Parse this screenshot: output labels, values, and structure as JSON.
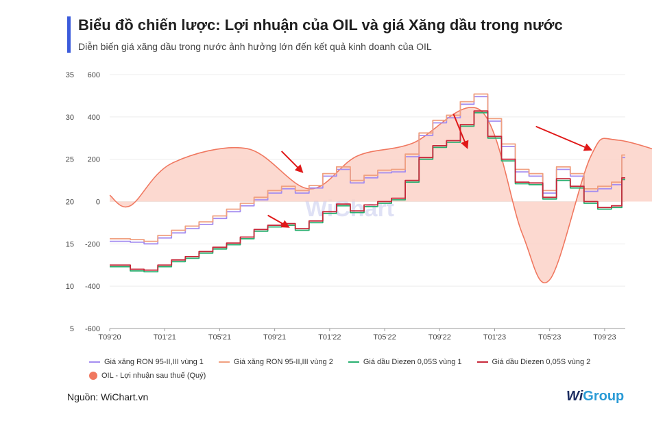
{
  "header": {
    "title": "Biểu đồ chiến lược: Lợi nhuận của OIL và giá Xăng dầu trong nước",
    "subtitle": "Diễn biến giá xăng dầu trong nước ảnh hưởng lớn đến kết quả kinh doanh của OIL"
  },
  "source": "Nguồn: WiChart.vn",
  "brand": {
    "w": "Wi",
    "g": "Group"
  },
  "watermark": "WiChart",
  "colors": {
    "ron95_v1": "#a48df0",
    "ron95_v2": "#f0a080",
    "diesel_v1": "#28b070",
    "diesel_v2": "#c8283a",
    "profit": "#f07860",
    "profit_fill": "#fcd2c8",
    "arrow": "#e01818",
    "accent": "#3b5bdb"
  },
  "chart_data": {
    "type": "line",
    "x_ticks": [
      "T09'20",
      "T01'21",
      "T05'21",
      "T09'21",
      "T01'22",
      "T05'22",
      "T09'22",
      "T01'23",
      "T05'23",
      "T09'23"
    ],
    "x_range_months": [
      0,
      37.5
    ],
    "left_axis": {
      "ticks": [
        35,
        30,
        25,
        20,
        15,
        10,
        5
      ],
      "range": [
        5,
        35
      ]
    },
    "right_axis": {
      "ticks": [
        600,
        400,
        200,
        0,
        -200,
        -400,
        -600
      ],
      "range": [
        -600,
        600
      ]
    },
    "series": [
      {
        "name": "Giá xăng RON 95-II,III vùng 1",
        "key": "ron95_v1",
        "axis": "left",
        "points": [
          [
            0,
            15.3
          ],
          [
            1,
            15.3
          ],
          [
            2,
            15.2
          ],
          [
            3,
            15.0
          ],
          [
            4,
            15.7
          ],
          [
            5,
            16.3
          ],
          [
            6,
            16.8
          ],
          [
            7,
            17.3
          ],
          [
            8,
            18.0
          ],
          [
            9,
            18.8
          ],
          [
            10,
            19.5
          ],
          [
            11,
            20.2
          ],
          [
            12,
            21.0
          ],
          [
            13,
            21.5
          ],
          [
            14,
            21.0
          ],
          [
            15,
            21.6
          ],
          [
            16,
            23.0
          ],
          [
            17,
            23.8
          ],
          [
            18,
            22.2
          ],
          [
            19,
            22.8
          ],
          [
            20,
            23.4
          ],
          [
            21,
            23.5
          ],
          [
            22,
            25.3
          ],
          [
            23,
            27.8
          ],
          [
            24,
            29.3
          ],
          [
            25,
            29.9
          ],
          [
            26,
            31.5
          ],
          [
            27,
            32.4
          ],
          [
            28,
            29.5
          ],
          [
            29,
            26.5
          ],
          [
            30,
            23.5
          ],
          [
            31,
            23.0
          ],
          [
            32,
            21.0
          ],
          [
            33,
            23.8
          ],
          [
            34,
            23.0
          ],
          [
            35,
            21.2
          ],
          [
            36,
            21.5
          ],
          [
            37,
            22.0
          ],
          [
            37.5,
            25.2
          ]
        ]
      },
      {
        "name": "Giá xăng RON 95-II,III vùng 2",
        "key": "ron95_v2",
        "axis": "left",
        "points": [
          [
            0,
            15.6
          ],
          [
            1,
            15.6
          ],
          [
            2,
            15.5
          ],
          [
            3,
            15.3
          ],
          [
            4,
            16.0
          ],
          [
            5,
            16.6
          ],
          [
            6,
            17.1
          ],
          [
            7,
            17.6
          ],
          [
            8,
            18.3
          ],
          [
            9,
            19.1
          ],
          [
            10,
            19.8
          ],
          [
            11,
            20.5
          ],
          [
            12,
            21.3
          ],
          [
            13,
            21.8
          ],
          [
            14,
            21.3
          ],
          [
            15,
            21.9
          ],
          [
            16,
            23.3
          ],
          [
            17,
            24.1
          ],
          [
            18,
            22.5
          ],
          [
            19,
            23.1
          ],
          [
            20,
            23.7
          ],
          [
            21,
            23.8
          ],
          [
            22,
            25.6
          ],
          [
            23,
            28.1
          ],
          [
            24,
            29.6
          ],
          [
            25,
            30.2
          ],
          [
            26,
            31.8
          ],
          [
            27,
            32.7
          ],
          [
            28,
            29.8
          ],
          [
            29,
            26.8
          ],
          [
            30,
            23.8
          ],
          [
            31,
            23.3
          ],
          [
            32,
            21.3
          ],
          [
            33,
            24.1
          ],
          [
            34,
            23.3
          ],
          [
            35,
            21.5
          ],
          [
            36,
            21.8
          ],
          [
            37,
            22.3
          ],
          [
            37.5,
            25.5
          ]
        ]
      },
      {
        "name": "Giá dầu Diezen 0,05S vùng 1",
        "key": "diesel_v1",
        "axis": "left",
        "points": [
          [
            0,
            12.3
          ],
          [
            1,
            12.3
          ],
          [
            2,
            11.8
          ],
          [
            3,
            11.7
          ],
          [
            4,
            12.3
          ],
          [
            5,
            12.9
          ],
          [
            6,
            13.3
          ],
          [
            7,
            13.9
          ],
          [
            8,
            14.4
          ],
          [
            9,
            14.9
          ],
          [
            10,
            15.6
          ],
          [
            11,
            16.5
          ],
          [
            12,
            17.0
          ],
          [
            13,
            17.2
          ],
          [
            14,
            16.6
          ],
          [
            15,
            17.5
          ],
          [
            16,
            18.6
          ],
          [
            17,
            19.5
          ],
          [
            18,
            18.7
          ],
          [
            19,
            19.4
          ],
          [
            20,
            19.8
          ],
          [
            21,
            20.2
          ],
          [
            22,
            22.3
          ],
          [
            23,
            25.0
          ],
          [
            24,
            26.4
          ],
          [
            25,
            27.0
          ],
          [
            26,
            28.9
          ],
          [
            27,
            30.5
          ],
          [
            28,
            27.5
          ],
          [
            29,
            24.8
          ],
          [
            30,
            22.1
          ],
          [
            31,
            22.0
          ],
          [
            32,
            20.3
          ],
          [
            33,
            22.5
          ],
          [
            34,
            21.6
          ],
          [
            35,
            19.8
          ],
          [
            36,
            19.1
          ],
          [
            37,
            19.3
          ],
          [
            37.5,
            22.6
          ]
        ]
      },
      {
        "name": "Giá dầu Diezen 0,05S vùng 2",
        "key": "diesel_v2",
        "axis": "left",
        "points": [
          [
            0,
            12.5
          ],
          [
            1,
            12.5
          ],
          [
            2,
            12.0
          ],
          [
            3,
            11.9
          ],
          [
            4,
            12.5
          ],
          [
            5,
            13.1
          ],
          [
            6,
            13.5
          ],
          [
            7,
            14.1
          ],
          [
            8,
            14.6
          ],
          [
            9,
            15.1
          ],
          [
            10,
            15.8
          ],
          [
            11,
            16.7
          ],
          [
            12,
            17.2
          ],
          [
            13,
            17.4
          ],
          [
            14,
            16.8
          ],
          [
            15,
            17.7
          ],
          [
            16,
            18.8
          ],
          [
            17,
            19.7
          ],
          [
            18,
            18.9
          ],
          [
            19,
            19.6
          ],
          [
            20,
            20.0
          ],
          [
            21,
            20.4
          ],
          [
            22,
            22.5
          ],
          [
            23,
            25.2
          ],
          [
            24,
            26.6
          ],
          [
            25,
            27.2
          ],
          [
            26,
            29.1
          ],
          [
            27,
            30.7
          ],
          [
            28,
            27.7
          ],
          [
            29,
            25.0
          ],
          [
            30,
            22.3
          ],
          [
            31,
            22.2
          ],
          [
            32,
            20.5
          ],
          [
            33,
            22.7
          ],
          [
            34,
            21.8
          ],
          [
            35,
            20.0
          ],
          [
            36,
            19.3
          ],
          [
            37,
            19.5
          ],
          [
            37.5,
            22.8
          ]
        ]
      },
      {
        "name": "OIL - Lợi nhuận sau thuế (Quý)",
        "key": "profit",
        "axis": "right",
        "points": [
          [
            0,
            30
          ],
          [
            1.5,
            -20
          ],
          [
            4.5,
            180
          ],
          [
            10,
            250
          ],
          [
            14.5,
            60
          ],
          [
            18,
            215
          ],
          [
            22,
            275
          ],
          [
            27,
            430
          ],
          [
            30,
            -150
          ],
          [
            32,
            -370
          ],
          [
            35,
            215
          ],
          [
            37,
            290
          ],
          [
            43,
            170
          ],
          [
            44,
            150
          ]
        ]
      }
    ],
    "legend": [
      "Giá xăng RON 95-II,III vùng 1",
      "Giá xăng RON 95-II,III vùng 2",
      "Giá dầu Diezen 0,05S vùng 1",
      "Giá dầu Diezen 0,05S vùng 2",
      "OIL - Lợi nhuận sau thuế (Quý)"
    ],
    "legend_placement": "bottom",
    "annotations": [
      {
        "type": "arrow",
        "from": [
          12.5,
          238
        ],
        "to": [
          14.0,
          140
        ]
      },
      {
        "type": "arrow",
        "from": [
          11.5,
          -65
        ],
        "to": [
          13.0,
          -120
        ]
      },
      {
        "type": "arrow",
        "from": [
          25.0,
          415
        ],
        "to": [
          26.0,
          255
        ]
      },
      {
        "type": "arrow",
        "from": [
          31.0,
          355
        ],
        "to": [
          35.0,
          245
        ]
      }
    ]
  }
}
